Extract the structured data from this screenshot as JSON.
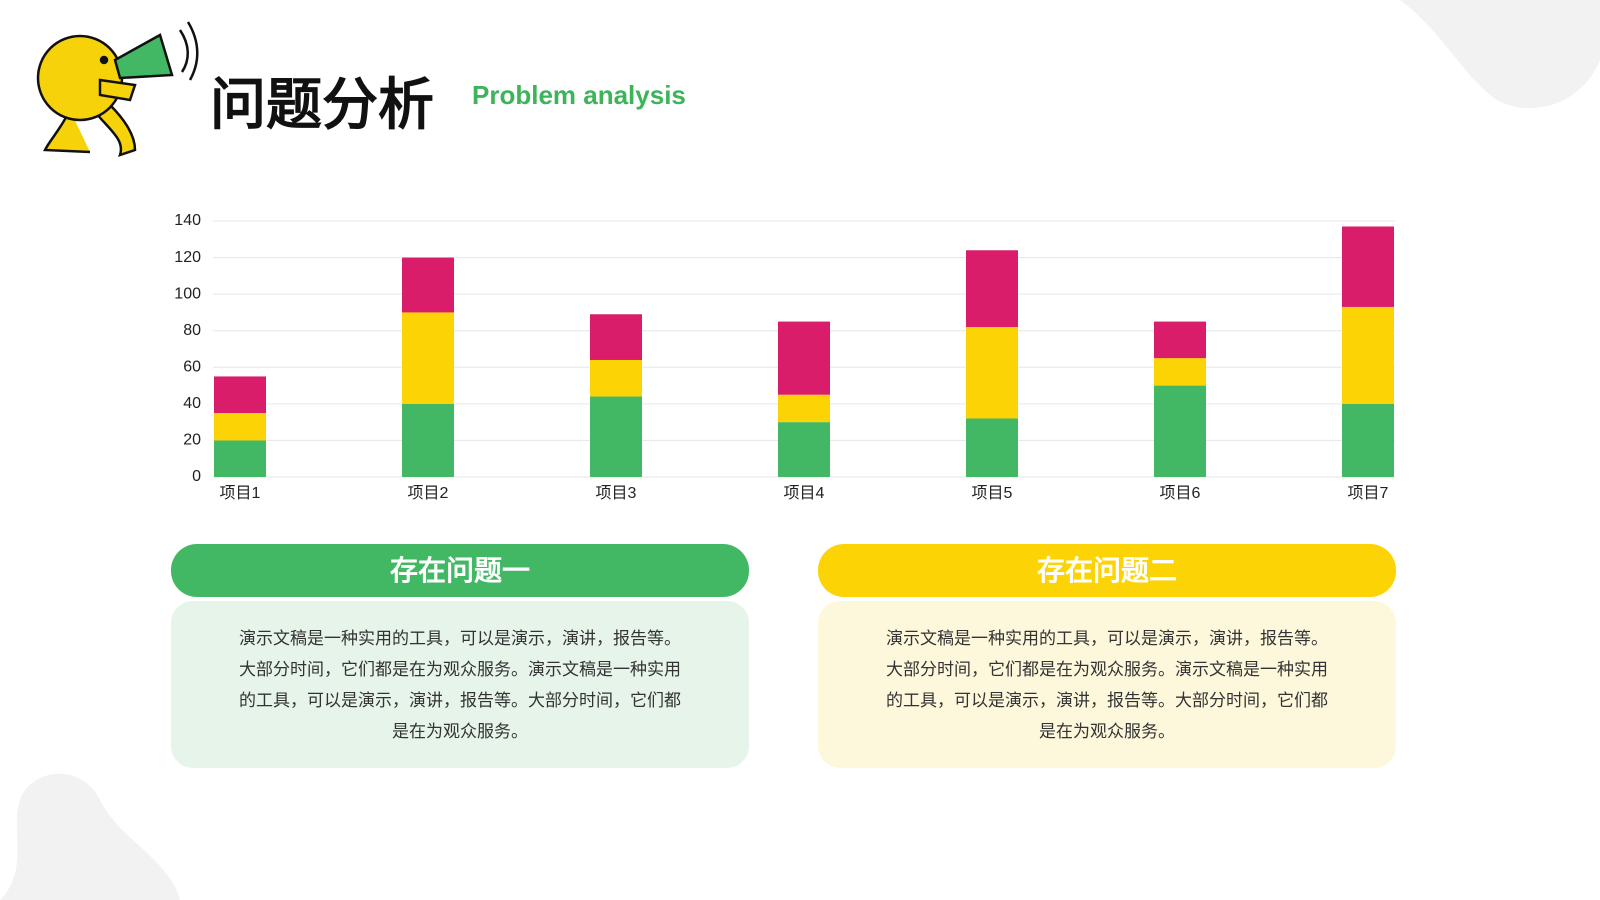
{
  "header": {
    "title": "问题分析",
    "subtitle": "Problem analysis"
  },
  "chart_data": {
    "type": "stacked_bar",
    "categories": [
      "项目1",
      "项目2",
      "项目3",
      "项目4",
      "项目5",
      "项目6",
      "项目7"
    ],
    "series": [
      {
        "color": "#43b864",
        "values": [
          20,
          40,
          44,
          30,
          32,
          50,
          40
        ]
      },
      {
        "color": "#fcd304",
        "values": [
          15,
          50,
          20,
          15,
          50,
          15,
          53
        ]
      },
      {
        "color": "#d91d6a",
        "values": [
          20,
          30,
          25,
          40,
          42,
          20,
          44
        ]
      }
    ],
    "ylim": [
      0,
      140
    ],
    "yticks": [
      0,
      20,
      40,
      60,
      80,
      100,
      120,
      140
    ],
    "grid": true
  },
  "cards": [
    {
      "title": "存在问题一",
      "text": "演示文稿是一种实用的工具，可以是演示，演讲，报告等。大部分时间，它们都是在为观众服务。演示文稿是一种实用的工具，可以是演示，演讲，报告等。大部分时间，它们都是在为观众服务。"
    },
    {
      "title": "存在问题二",
      "text": "演示文稿是一种实用的工具，可以是演示，演讲，报告等。大部分时间，它们都是在为观众服务。演示文稿是一种实用的工具，可以是演示，演讲，报告等。大部分时间，它们都是在为观众服务。"
    }
  ]
}
